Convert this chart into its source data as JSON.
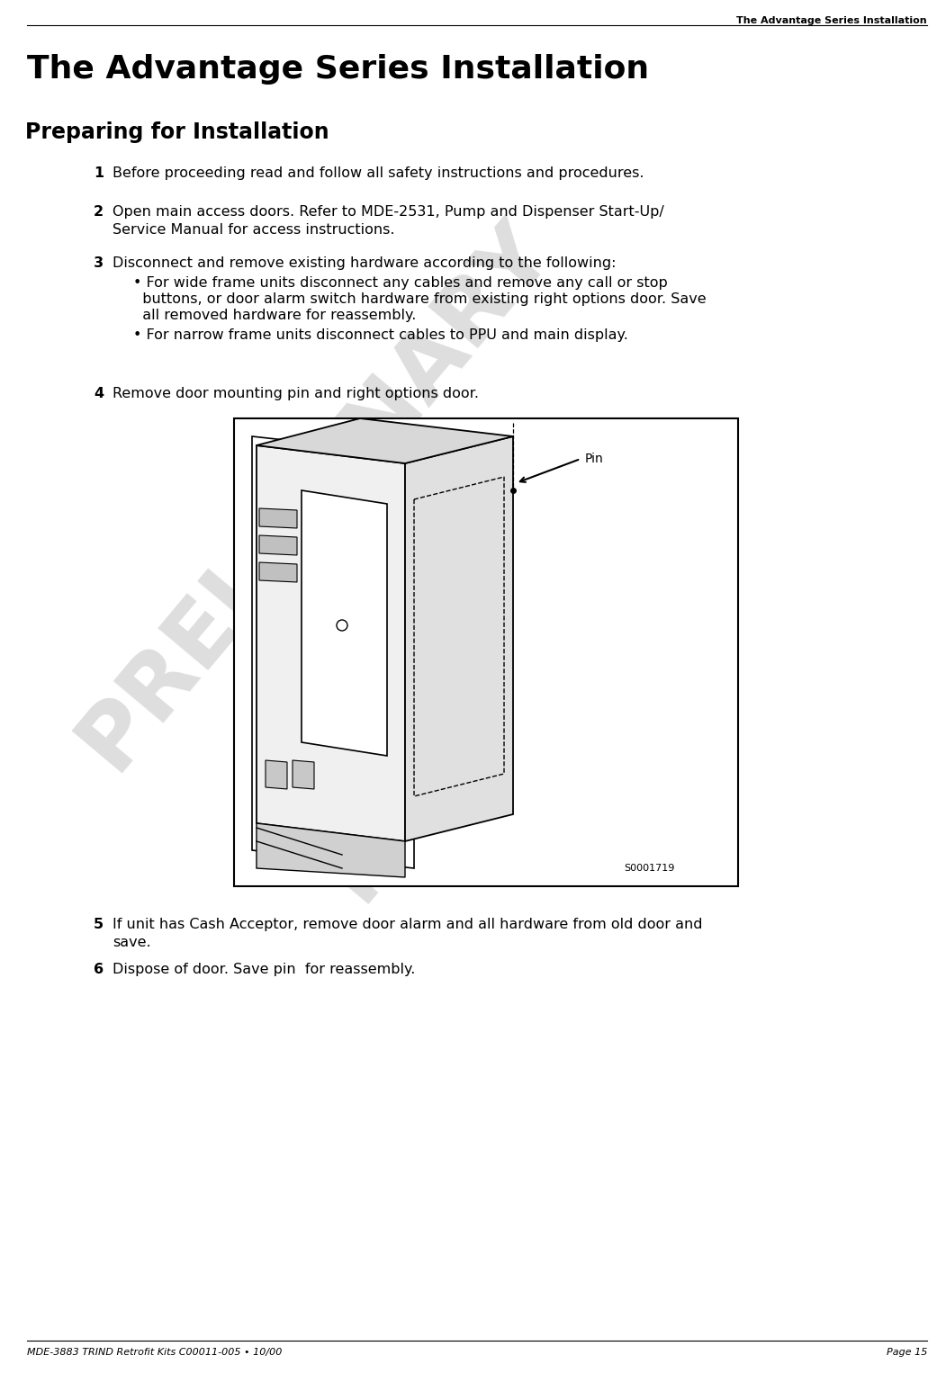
{
  "bg_color": "#ffffff",
  "header_text": "The Advantage Series Installation",
  "title": "The Advantage Series Installation",
  "section_title": "Preparing for Installation",
  "footer_left": "MDE-3883 TRIND Retrofit Kits C00011-005 • 10/00",
  "footer_right": "Page 15",
  "pin_label": "Pin",
  "s_label": "S0001719",
  "item1": "Before proceeding read and follow all safety instructions and procedures.",
  "item2_line1": "Open main access doors. Refer to MDE-2531, Pump and Dispenser Start-Up/",
  "item2_line2": "Service Manual for access instructions.",
  "item3_head": "Disconnect and remove existing hardware according to the following:",
  "item3_b1_line1": "• For wide frame units disconnect any cables and remove any call or stop",
  "item3_b1_line2": "  buttons, or door alarm switch hardware from existing right options door. Save",
  "item3_b1_line3": "  all removed hardware for reassembly.",
  "item3_b2": "• For narrow frame units disconnect cables to PPU and main display.",
  "item4": "Remove door mounting pin and right options door.",
  "item5_line1": "If unit has Cash Acceptor, remove door alarm and all hardware from old door and",
  "item5_line2": "save.",
  "item6": "Dispose of door. Save pin  for reassembly."
}
